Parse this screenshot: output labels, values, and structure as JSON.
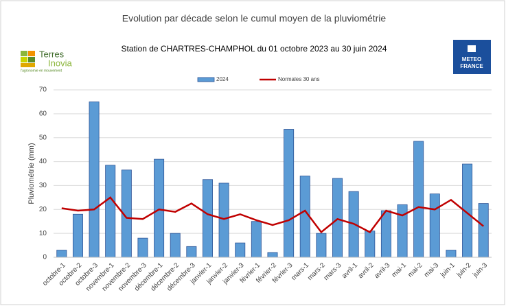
{
  "chart_data": {
    "type": "bar",
    "title": "Evolution par décade selon le cumul moyen de la pluviométrie",
    "subtitle": "Station de CHARTRES-CHAMPHOL du 01 octobre 2023 au 30 juin 2024",
    "y_label": "Pluviométrie (mm)",
    "categories": [
      "octobre-1",
      "octobre-2",
      "octobre-3",
      "novembre-1",
      "novembre-2",
      "novembre-3",
      "décembre-1",
      "décembre-2",
      "décembre-3",
      "janvier-1",
      "janvier-2",
      "janvier-3",
      "février-1",
      "février-2",
      "février-3",
      "mars-1",
      "mars-2",
      "mars-3",
      "avril-1",
      "avril-2",
      "avril-3",
      "mai-1",
      "mai-2",
      "mai-3",
      "juin-1",
      "juin-2",
      "juin-3"
    ],
    "series": [
      {
        "name": "2024",
        "type": "bar",
        "color": "#5b9bd5",
        "values": [
          3,
          18,
          65,
          38.5,
          36.5,
          8,
          41,
          10,
          4.5,
          32.5,
          31,
          6,
          15,
          2,
          53.5,
          34,
          10,
          33,
          27.5,
          11,
          19.5,
          22,
          48.5,
          26.5,
          3,
          39,
          22.5
        ]
      },
      {
        "name": "Normales 30 ans",
        "type": "line",
        "color": "#c00000",
        "values": [
          20.5,
          19.5,
          20,
          25,
          16.5,
          16,
          20,
          19,
          22.5,
          18,
          16,
          18,
          15.5,
          13.5,
          15.5,
          19.5,
          10.5,
          16,
          14,
          10.5,
          19.5,
          17.5,
          21,
          20,
          24,
          18.5,
          13
        ]
      }
    ],
    "ylim": [
      0,
      70
    ],
    "yticks": [
      0,
      10,
      20,
      30,
      40,
      50,
      60,
      70
    ],
    "grid": true,
    "legend": "top"
  },
  "logos": {
    "left": {
      "line1": "Terres",
      "line2": "Inovia",
      "tagline": "l'agronomie en mouvement"
    },
    "right": {
      "line1": "METEO",
      "line2": "FRANCE"
    }
  }
}
